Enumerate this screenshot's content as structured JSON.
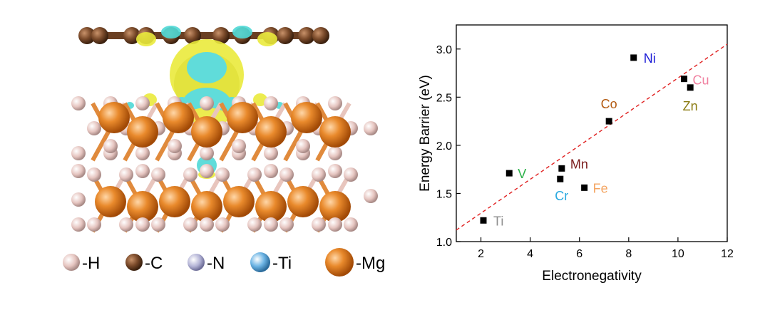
{
  "structure": {
    "legend": [
      {
        "label": "-H",
        "color": "#e9c9c4"
      },
      {
        "label": "-C",
        "color": "#7a4a2a"
      },
      {
        "label": "-N",
        "color": "#b4b4d6"
      },
      {
        "label": "-Ti",
        "color": "#6cb4e4"
      },
      {
        "label": "-Mg",
        "color": "#e07a1e"
      }
    ]
  },
  "chart_data": {
    "type": "scatter",
    "xlabel": "Electronegativity",
    "ylabel": "Energy Barrier (eV)",
    "xlim": [
      1,
      12
    ],
    "ylim": [
      1.0,
      3.25
    ],
    "xticks": [
      2,
      4,
      6,
      8,
      10,
      12
    ],
    "yticks": [
      1.0,
      1.5,
      2.0,
      2.5,
      3.0
    ],
    "points": [
      {
        "label": "Ti",
        "x": 2.1,
        "y": 1.22,
        "color": "#8c8c8c"
      },
      {
        "label": "V",
        "x": 3.15,
        "y": 1.71,
        "color": "#2bb24a"
      },
      {
        "label": "Cr",
        "x": 5.22,
        "y": 1.65,
        "color": "#29a9e0"
      },
      {
        "label": "Mn",
        "x": 5.28,
        "y": 1.76,
        "color": "#7a1a1a"
      },
      {
        "label": "Fe",
        "x": 6.2,
        "y": 1.56,
        "color": "#f4a460"
      },
      {
        "label": "Co",
        "x": 7.2,
        "y": 2.25,
        "color": "#b35a10"
      },
      {
        "label": "Ni",
        "x": 8.2,
        "y": 2.91,
        "color": "#1a1ad6"
      },
      {
        "label": "Cu",
        "x": 10.25,
        "y": 2.69,
        "color": "#f080a0"
      },
      {
        "label": "Zn",
        "x": 10.5,
        "y": 2.6,
        "color": "#8a7a10"
      }
    ],
    "fit_line": {
      "x": [
        1,
        12
      ],
      "y": [
        1.12,
        3.05
      ],
      "color": "#e02020",
      "style": "dashed"
    }
  }
}
